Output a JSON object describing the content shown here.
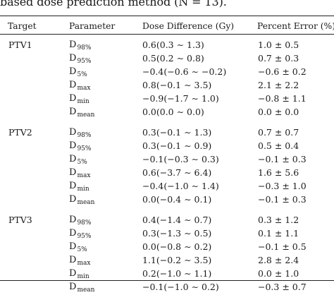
{
  "caption": "based dose prediction method (N = 13).",
  "headers": {
    "target": "Target",
    "parameter": "Parameter",
    "dose_difference": "Dose Difference (Gy)",
    "percent_error": "Percent Error (%)"
  },
  "groups": [
    {
      "target": "PTV1",
      "rows": [
        {
          "param_base": "D",
          "param_sub": "98%",
          "diff": "0.6(0.3 ∼ 1.3)",
          "err": "1.0 ± 0.5"
        },
        {
          "param_base": "D",
          "param_sub": "95%",
          "diff": "0.5(0.2 ∼ 0.8)",
          "err": "0.7 ± 0.3"
        },
        {
          "param_base": "D",
          "param_sub": "5%",
          "diff": "−0.4(−0.6 ∼ −0.2)",
          "err": "−0.6 ± 0.2"
        },
        {
          "param_base": "D",
          "param_sub": "max",
          "diff": "0.8(−0.1 ∼ 3.5)",
          "err": "2.1 ± 2.2"
        },
        {
          "param_base": "D",
          "param_sub": "min",
          "diff": "−0.9(−1.7 ∼ 1.0)",
          "err": "−0.8 ± 1.1"
        },
        {
          "param_base": "D",
          "param_sub": "mean",
          "diff": "0.0(0.0 ∼ 0.0)",
          "err": "0.0 ± 0.0"
        }
      ]
    },
    {
      "target": "PTV2",
      "rows": [
        {
          "param_base": "D",
          "param_sub": "98%",
          "diff": "0.3(−0.1 ∼ 1.3)",
          "err": "0.7 ± 0.7"
        },
        {
          "param_base": "D",
          "param_sub": "95%",
          "diff": "0.3(−0.1 ∼ 0.9)",
          "err": "0.5 ± 0.4"
        },
        {
          "param_base": "D",
          "param_sub": "5%",
          "diff": "−0.1(−0.3 ∼ 0.3)",
          "err": "−0.1 ± 0.3"
        },
        {
          "param_base": "D",
          "param_sub": "max",
          "diff": "0.6(−3.7 ∼ 6.4)",
          "err": "1.6 ± 5.6"
        },
        {
          "param_base": "D",
          "param_sub": "min",
          "diff": "−0.4(−1.0 ∼ 1.4)",
          "err": "−0.3 ± 1.0"
        },
        {
          "param_base": "D",
          "param_sub": "mean",
          "diff": "0.0(−0.4 ∼ 0.1)",
          "err": "−0.1 ± 0.3"
        }
      ]
    },
    {
      "target": "PTV3",
      "rows": [
        {
          "param_base": "D",
          "param_sub": "98%",
          "diff": "0.4(−1.4 ∼ 0.7)",
          "err": "0.3 ± 1.2"
        },
        {
          "param_base": "D",
          "param_sub": "95%",
          "diff": "0.3(−1.3 ∼ 0.5)",
          "err": "0.1 ± 1.1"
        },
        {
          "param_base": "D",
          "param_sub": "5%",
          "diff": "0.0(−0.8 ∼ 0.2)",
          "err": "−0.1 ± 0.5"
        },
        {
          "param_base": "D",
          "param_sub": "max",
          "diff": "1.1(−0.2 ∼ 3.5)",
          "err": "2.8 ± 2.4"
        },
        {
          "param_base": "D",
          "param_sub": "min",
          "diff": "0.2(−1.0 ∼ 1.1)",
          "err": "0.0 ± 1.0"
        },
        {
          "param_base": "D",
          "param_sub": "mean",
          "diff": "−0.1(−1.0 ∼ 0.2)",
          "err": "−0.3 ± 0.7"
        }
      ]
    }
  ]
}
